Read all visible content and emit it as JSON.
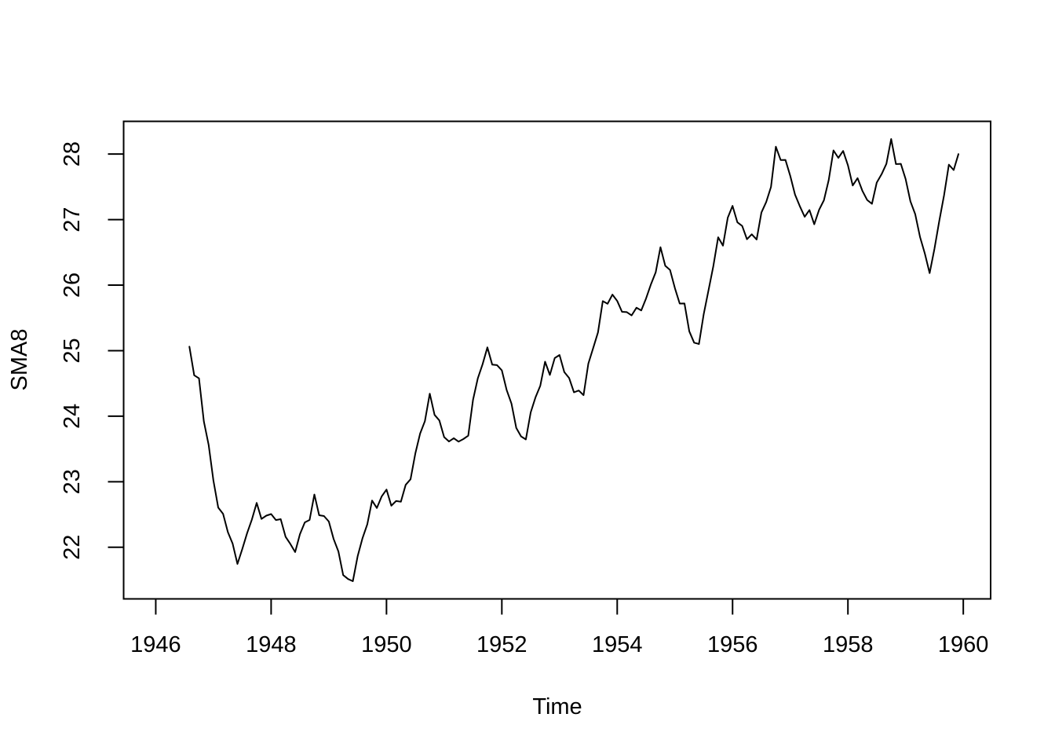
{
  "figure": {
    "background": "#ffffff",
    "foreground": "#000000"
  },
  "chart_data": {
    "type": "line",
    "title": "",
    "xlabel": "Time",
    "ylabel": "SMA8",
    "legend": false,
    "grid": false,
    "box": "full",
    "line_color": "#000000",
    "line_width": 2,
    "xlim": [
      1945.443,
      1960.474
    ],
    "ylim": [
      21.212,
      28.499
    ],
    "x_ticks": [
      1946,
      1948,
      1950,
      1952,
      1954,
      1956,
      1958,
      1960
    ],
    "y_ticks": [
      22,
      23,
      24,
      25,
      26,
      27,
      28
    ],
    "series": [
      {
        "name": "SMA8",
        "description": "8-month simple moving average, monthly points",
        "x_start": 1946.5833,
        "x_step": 0.0833333,
        "x_end": 1959.9167,
        "points": 161,
        "y": [
          25.06,
          24.624,
          24.578,
          23.92,
          23.562,
          23.016,
          22.606,
          22.51,
          22.231,
          22.053,
          21.745,
          21.971,
          22.215,
          22.424,
          22.676,
          22.432,
          22.483,
          22.506,
          22.415,
          22.429,
          22.16,
          22.05,
          21.926,
          22.2,
          22.379,
          22.417,
          22.805,
          22.489,
          22.476,
          22.392,
          22.127,
          21.936,
          21.575,
          21.515,
          21.482,
          21.862,
          22.134,
          22.349,
          22.712,
          22.599,
          22.775,
          22.88,
          22.633,
          22.705,
          22.695,
          22.952,
          23.037,
          23.431,
          23.735,
          23.924,
          24.344,
          24.02,
          23.935,
          23.681,
          23.614,
          23.664,
          23.612,
          23.651,
          23.703,
          24.249,
          24.577,
          24.793,
          25.05,
          24.786,
          24.779,
          24.7,
          24.401,
          24.191,
          23.82,
          23.692,
          23.645,
          24.059,
          24.288,
          24.465,
          24.831,
          24.629,
          24.887,
          24.934,
          24.672,
          24.583,
          24.364,
          24.392,
          24.321,
          24.802,
          25.04,
          25.278,
          25.755,
          25.715,
          25.855,
          25.758,
          25.592,
          25.588,
          25.537,
          25.655,
          25.613,
          25.795,
          26.007,
          26.194,
          26.579,
          26.295,
          26.231,
          25.953,
          25.718,
          25.72,
          25.295,
          25.121,
          25.101,
          25.558,
          25.921,
          26.287,
          26.73,
          26.602,
          27.027,
          27.209,
          26.958,
          26.903,
          26.7,
          26.776,
          26.696,
          27.107,
          27.268,
          27.498,
          28.112,
          27.909,
          27.911,
          27.669,
          27.382,
          27.202,
          27.043,
          27.146,
          26.928,
          27.15,
          27.294,
          27.601,
          28.056,
          27.942,
          28.047,
          27.829,
          27.52,
          27.633,
          27.439,
          27.299,
          27.24,
          27.564,
          27.692,
          27.851,
          28.229,
          27.847,
          27.851,
          27.619,
          27.279,
          27.083,
          26.732,
          26.481,
          26.183,
          26.553,
          26.975,
          27.373,
          27.839,
          27.756,
          27.999
        ]
      }
    ]
  }
}
